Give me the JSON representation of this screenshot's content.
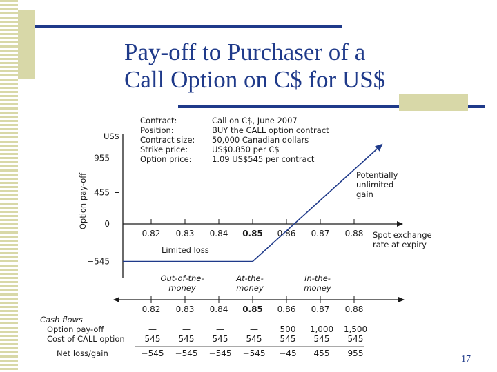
{
  "slide": {
    "title_line1": "Pay-off to Purchaser of a",
    "title_line2": "Call Option on C$ for US$",
    "page_number": "17",
    "colors": {
      "title": "#1f3a8a",
      "accent_square": "#d8d8a8",
      "bars": "#1f3a8a"
    }
  },
  "contract": [
    {
      "label": "Contract:",
      "value": "Call on C$, June 2007"
    },
    {
      "label": "Position:",
      "value": "BUY the CALL option contract"
    },
    {
      "label": "Contract size:",
      "value": "50,000 Canadian dollars"
    },
    {
      "label": "Strike price:",
      "value": "US$0.850 per C$"
    },
    {
      "label": "Option price:",
      "value": "1.09     US$545 per contract"
    }
  ],
  "chart_data": {
    "type": "line",
    "y_unit": "US$",
    "ylabel": "Option pay-off",
    "xlabel": "Spot exchange rate at expiry",
    "x_categories": [
      "0.82",
      "0.83",
      "0.84",
      "0.85",
      "0.86",
      "0.87",
      "0.88"
    ],
    "y_ticks": [
      "955",
      "455",
      "0",
      "−545"
    ],
    "series": [
      {
        "x": [
          0.82,
          0.83,
          0.84,
          0.85,
          0.86,
          0.87,
          0.88
        ],
        "y": [
          -545,
          -545,
          -545,
          -545,
          -45,
          455,
          955
        ]
      }
    ],
    "annotations": {
      "limited_loss": "Limited loss",
      "unlimited_gain": [
        "Potentially",
        "unlimited",
        "gain"
      ]
    },
    "moneyness": [
      {
        "line1": "Out-of-the-",
        "line2": "money"
      },
      {
        "line1": "At-the-",
        "line2": "money"
      },
      {
        "line1": "In-the-",
        "line2": "money"
      }
    ]
  },
  "cash_flows": {
    "heading": "Cash flows",
    "rates": [
      "0.82",
      "0.83",
      "0.84",
      "0.85",
      "0.86",
      "0.87",
      "0.88"
    ],
    "rows": [
      {
        "label": "Option pay-off",
        "values": [
          "—",
          "—",
          "—",
          "—",
          "500",
          "1,000",
          "1,500"
        ]
      },
      {
        "label": "Cost of CALL option",
        "values": [
          "545",
          "545",
          "545",
          "545",
          "545",
          "545",
          "545"
        ]
      },
      {
        "label": "Net loss/gain",
        "values": [
          "−545",
          "−545",
          "−545",
          "−545",
          "−45",
          "455",
          "955"
        ]
      }
    ]
  }
}
